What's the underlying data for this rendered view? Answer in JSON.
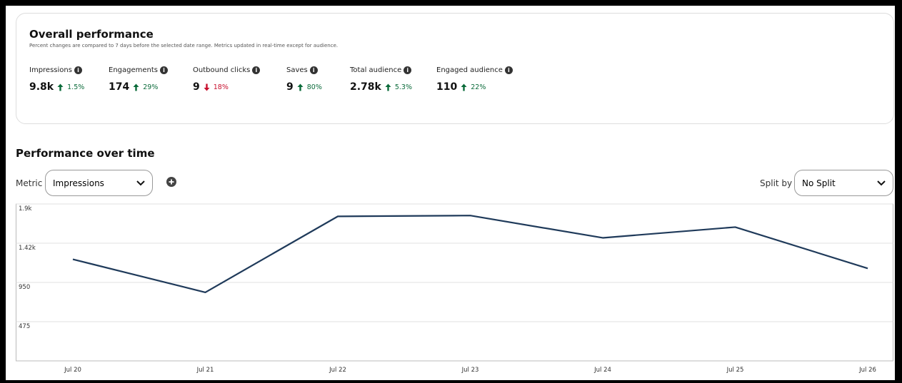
{
  "overall": {
    "title": "Overall performance",
    "subtitle": "Percent changes are compared to 7 days before the selected date range. Metrics updated in real-time except for audience.",
    "metrics": [
      {
        "label": "Impressions",
        "value": "9.8k",
        "change": "1.5%",
        "direction": "up"
      },
      {
        "label": "Engagements",
        "value": "174",
        "change": "29%",
        "direction": "up"
      },
      {
        "label": "Outbound clicks",
        "value": "9",
        "change": "18%",
        "direction": "down"
      },
      {
        "label": "Saves",
        "value": "9",
        "change": "80%",
        "direction": "up"
      },
      {
        "label": "Total audience",
        "value": "2.78k",
        "change": "5.3%",
        "direction": "up"
      },
      {
        "label": "Engaged audience",
        "value": "110",
        "change": "22%",
        "direction": "up"
      }
    ]
  },
  "controls": {
    "metric_label": "Metric",
    "metric_value": "Impressions",
    "split_label": "Split by",
    "split_value": "No Split"
  },
  "chart_data": {
    "type": "line",
    "title": "Performance over time",
    "categories": [
      "Jul 20",
      "Jul 21",
      "Jul 22",
      "Jul 23",
      "Jul 24",
      "Jul 25",
      "Jul 26"
    ],
    "series": [
      {
        "name": "Impressions",
        "color": "#1f3a5a",
        "values": [
          1230,
          830,
          1750,
          1760,
          1490,
          1620,
          1120
        ]
      }
    ],
    "ylim": [
      0,
      1900
    ],
    "yticks": [
      475,
      950,
      {
        "value": 1425,
        "label": "1.42k"
      },
      {
        "value": 1900,
        "label": "1.9k"
      }
    ],
    "grid": true,
    "legend": false
  }
}
